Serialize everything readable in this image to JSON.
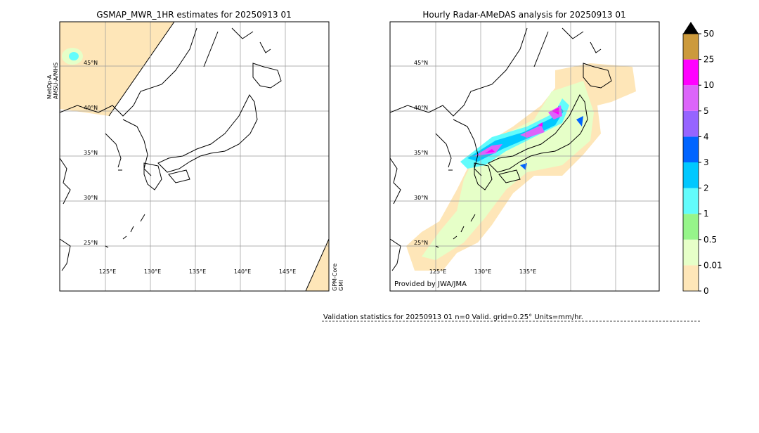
{
  "left_panel": {
    "title": "GSMAP_MWR_1HR estimates for 20250913 01",
    "lat_labels": [
      "45°N",
      "40°N",
      "35°N",
      "30°N",
      "25°N"
    ],
    "lon_labels": [
      "125°E",
      "130°E",
      "135°E",
      "140°E",
      "145°E"
    ],
    "left_side_label": [
      "MetOp-A",
      "AMSU-A/MHS"
    ],
    "right_side_label": [
      "GPM-Core",
      "GMI"
    ]
  },
  "right_panel": {
    "title": "Hourly Radar-AMeDAS analysis for 20250913 01",
    "lat_labels": [
      "45°N",
      "40°N",
      "35°N",
      "30°N",
      "25°N"
    ],
    "lon_labels": [
      "125°E",
      "130°E",
      "135°E"
    ],
    "credit": "Provided by JWA/JMA"
  },
  "colorbar": {
    "levels": [
      0,
      0.01,
      0.5,
      1,
      2,
      3,
      4,
      5,
      10,
      25,
      50
    ],
    "colors": [
      "#fee6b8",
      "#e6ffc8",
      "#96f58a",
      "#62fcfc",
      "#00c8ff",
      "#0064ff",
      "#9664ff",
      "#dc64fa",
      "#ff00ff",
      "#cc9a3c"
    ],
    "extend_color": "#000000"
  },
  "validation": "Validation statistics for 20250913 01  n=0 Valid. grid=0.25° Units=mm/hr."
}
